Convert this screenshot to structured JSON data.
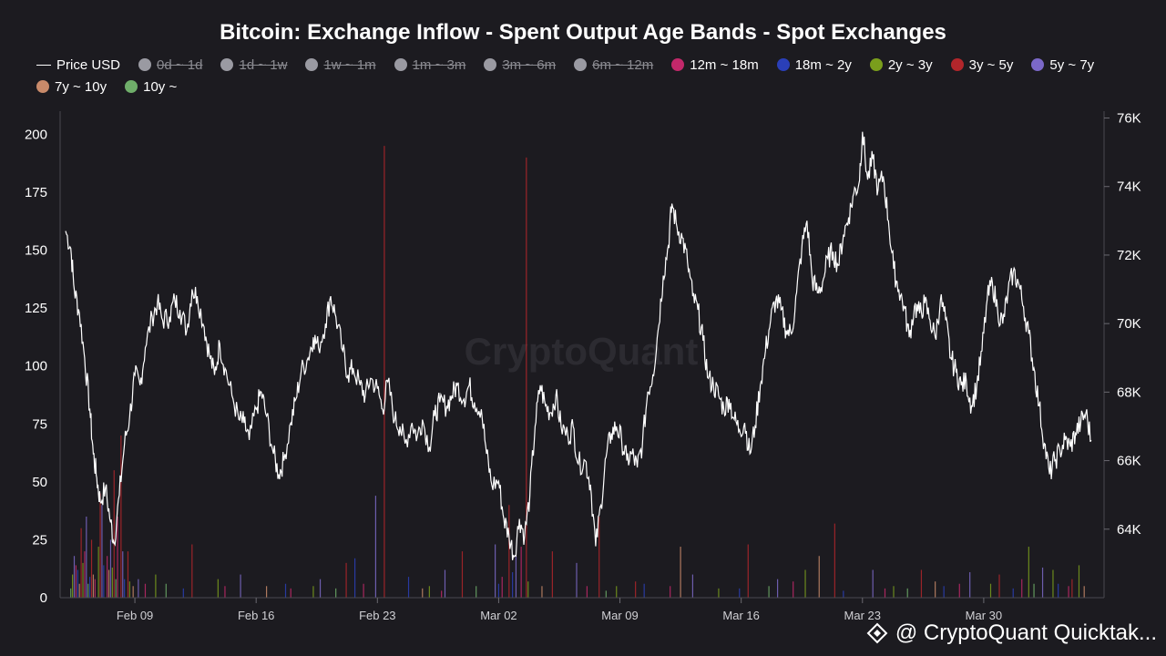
{
  "title": "Bitcoin: Exchange Inflow - Spent Output Age Bands - Spot Exchanges",
  "watermark": "CryptoQuant",
  "footer": {
    "text": "@ CryptoQuant Quicktak..."
  },
  "legend": [
    {
      "label": "Price USD",
      "color": "#ffffff",
      "type": "line",
      "active": true
    },
    {
      "label": "0d ~ 1d",
      "color": "#9a9aa2",
      "type": "dot",
      "active": false
    },
    {
      "label": "1d ~ 1w",
      "color": "#9a9aa2",
      "type": "dot",
      "active": false
    },
    {
      "label": "1w ~ 1m",
      "color": "#9a9aa2",
      "type": "dot",
      "active": false
    },
    {
      "label": "1m ~ 3m",
      "color": "#9a9aa2",
      "type": "dot",
      "active": false
    },
    {
      "label": "3m ~ 6m",
      "color": "#9a9aa2",
      "type": "dot",
      "active": false
    },
    {
      "label": "6m ~ 12m",
      "color": "#9a9aa2",
      "type": "dot",
      "active": false
    },
    {
      "label": "12m ~ 18m",
      "color": "#c2286a",
      "type": "dot",
      "active": true
    },
    {
      "label": "18m ~ 2y",
      "color": "#2a3fb8",
      "type": "dot",
      "active": true
    },
    {
      "label": "2y ~ 3y",
      "color": "#7a9e1c",
      "type": "dot",
      "active": true
    },
    {
      "label": "3y ~ 5y",
      "color": "#b2262b",
      "type": "dot",
      "active": true
    },
    {
      "label": "5y ~ 7y",
      "color": "#7b68c8",
      "type": "dot",
      "active": true
    },
    {
      "label": "7y ~ 10y",
      "color": "#c98a6a",
      "type": "dot",
      "active": true
    },
    {
      "label": "10y ~",
      "color": "#6fae6a",
      "type": "dot",
      "active": true
    }
  ],
  "chart_data": {
    "type": "line",
    "x_ticks": [
      "Feb 09",
      "Feb 16",
      "Feb 23",
      "Mar 02",
      "Mar 09",
      "Mar 16",
      "Mar 23",
      "Mar 30"
    ],
    "y_left": {
      "ticks": [
        0,
        25,
        50,
        75,
        100,
        125,
        150,
        175,
        200
      ],
      "range": [
        0,
        210
      ]
    },
    "y_right": {
      "ticks": [
        "64K",
        "66K",
        "68K",
        "70K",
        "72K",
        "74K",
        "76K"
      ],
      "range": [
        62000,
        76200
      ]
    },
    "x_range_days": [
      0,
      59
    ],
    "price_series": {
      "name": "Price USD",
      "color": "#ffffff",
      "points": [
        [
          0.0,
          72700
        ],
        [
          0.3,
          72200
        ],
        [
          0.5,
          71000
        ],
        [
          0.8,
          70300
        ],
        [
          1.1,
          69000
        ],
        [
          1.4,
          67500
        ],
        [
          1.6,
          66200
        ],
        [
          1.8,
          65500
        ],
        [
          2.0,
          64800
        ],
        [
          2.3,
          65200
        ],
        [
          2.6,
          64200
        ],
        [
          2.8,
          63600
        ],
        [
          3.1,
          65000
        ],
        [
          3.4,
          66500
        ],
        [
          3.7,
          67300
        ],
        [
          4.0,
          68500
        ],
        [
          4.3,
          68200
        ],
        [
          4.6,
          69300
        ],
        [
          5.0,
          70200
        ],
        [
          5.3,
          70600
        ],
        [
          5.6,
          70100
        ],
        [
          6.0,
          70200
        ],
        [
          6.3,
          70700
        ],
        [
          6.6,
          70400
        ],
        [
          7.0,
          69800
        ],
        [
          7.3,
          71000
        ],
        [
          7.6,
          70800
        ],
        [
          8.0,
          69900
        ],
        [
          8.3,
          69100
        ],
        [
          8.6,
          68500
        ],
        [
          8.9,
          69400
        ],
        [
          9.2,
          68700
        ],
        [
          9.6,
          67900
        ],
        [
          10.0,
          67200
        ],
        [
          10.3,
          67100
        ],
        [
          10.6,
          66600
        ],
        [
          11.0,
          67500
        ],
        [
          11.3,
          68000
        ],
        [
          11.6,
          67300
        ],
        [
          12.0,
          66200
        ],
        [
          12.3,
          65600
        ],
        [
          12.6,
          66000
        ],
        [
          13.0,
          67100
        ],
        [
          13.3,
          67800
        ],
        [
          13.6,
          68600
        ],
        [
          14.0,
          69000
        ],
        [
          14.3,
          69600
        ],
        [
          14.6,
          69300
        ],
        [
          15.0,
          70000
        ],
        [
          15.3,
          70800
        ],
        [
          15.6,
          70200
        ],
        [
          16.0,
          69200
        ],
        [
          16.3,
          68500
        ],
        [
          16.6,
          68700
        ],
        [
          17.0,
          68200
        ],
        [
          17.3,
          67900
        ],
        [
          17.6,
          68400
        ],
        [
          18.0,
          68100
        ],
        [
          18.3,
          67500
        ],
        [
          18.6,
          68300
        ],
        [
          19.0,
          67200
        ],
        [
          19.3,
          67000
        ],
        [
          19.6,
          66500
        ],
        [
          20.0,
          67100
        ],
        [
          20.3,
          66700
        ],
        [
          20.6,
          67200
        ],
        [
          21.0,
          66400
        ],
        [
          21.3,
          67300
        ],
        [
          21.6,
          67700
        ],
        [
          22.0,
          67600
        ],
        [
          22.3,
          67900
        ],
        [
          22.6,
          68200
        ],
        [
          23.0,
          67800
        ],
        [
          23.3,
          68200
        ],
        [
          23.6,
          67700
        ],
        [
          24.0,
          67500
        ],
        [
          24.3,
          66200
        ],
        [
          24.6,
          65300
        ],
        [
          25.0,
          65400
        ],
        [
          25.3,
          64300
        ],
        [
          25.6,
          63800
        ],
        [
          25.9,
          63200
        ],
        [
          26.2,
          64300
        ],
        [
          26.5,
          63800
        ],
        [
          26.8,
          65000
        ],
        [
          27.1,
          67000
        ],
        [
          27.4,
          68200
        ],
        [
          27.7,
          67600
        ],
        [
          28.0,
          67400
        ],
        [
          28.3,
          67900
        ],
        [
          28.6,
          67000
        ],
        [
          29.0,
          66700
        ],
        [
          29.3,
          67000
        ],
        [
          29.6,
          65900
        ],
        [
          30.0,
          66000
        ],
        [
          30.3,
          65300
        ],
        [
          30.6,
          63500
        ],
        [
          30.9,
          64700
        ],
        [
          31.2,
          66100
        ],
        [
          31.5,
          66800
        ],
        [
          31.8,
          67000
        ],
        [
          32.1,
          66600
        ],
        [
          32.4,
          66000
        ],
        [
          32.7,
          66200
        ],
        [
          33.0,
          65800
        ],
        [
          33.3,
          66500
        ],
        [
          33.6,
          68000
        ],
        [
          33.9,
          68500
        ],
        [
          34.2,
          69800
        ],
        [
          34.5,
          71400
        ],
        [
          34.8,
          72300
        ],
        [
          35.0,
          73500
        ],
        [
          35.3,
          72800
        ],
        [
          35.6,
          72500
        ],
        [
          35.9,
          71800
        ],
        [
          36.2,
          70800
        ],
        [
          36.5,
          70400
        ],
        [
          36.8,
          69500
        ],
        [
          37.1,
          68400
        ],
        [
          37.4,
          68200
        ],
        [
          37.7,
          67900
        ],
        [
          38.0,
          67500
        ],
        [
          38.3,
          67800
        ],
        [
          38.6,
          67200
        ],
        [
          38.9,
          66900
        ],
        [
          39.2,
          67100
        ],
        [
          39.5,
          66200
        ],
        [
          39.8,
          67000
        ],
        [
          40.1,
          68200
        ],
        [
          40.4,
          69200
        ],
        [
          40.7,
          70100
        ],
        [
          41.0,
          70700
        ],
        [
          41.3,
          70400
        ],
        [
          41.6,
          69800
        ],
        [
          41.9,
          69700
        ],
        [
          42.2,
          70900
        ],
        [
          42.5,
          72200
        ],
        [
          42.8,
          73000
        ],
        [
          43.1,
          71300
        ],
        [
          43.4,
          70900
        ],
        [
          43.7,
          71200
        ],
        [
          44.0,
          71900
        ],
        [
          44.3,
          72100
        ],
        [
          44.6,
          71700
        ],
        [
          44.9,
          72600
        ],
        [
          45.2,
          73100
        ],
        [
          45.5,
          73800
        ],
        [
          45.8,
          74100
        ],
        [
          46.0,
          75600
        ],
        [
          46.3,
          74200
        ],
        [
          46.6,
          74800
        ],
        [
          46.9,
          73900
        ],
        [
          47.2,
          74300
        ],
        [
          47.5,
          73000
        ],
        [
          47.8,
          71600
        ],
        [
          48.1,
          71000
        ],
        [
          48.4,
          70500
        ],
        [
          48.7,
          69600
        ],
        [
          49.0,
          70500
        ],
        [
          49.3,
          70300
        ],
        [
          49.6,
          70600
        ],
        [
          49.9,
          70100
        ],
        [
          50.2,
          69600
        ],
        [
          50.5,
          70700
        ],
        [
          50.8,
          70100
        ],
        [
          51.1,
          69000
        ],
        [
          51.4,
          68600
        ],
        [
          51.7,
          68200
        ],
        [
          52.0,
          68300
        ],
        [
          52.3,
          67600
        ],
        [
          52.6,
          68200
        ],
        [
          52.9,
          69200
        ],
        [
          53.2,
          70700
        ],
        [
          53.5,
          71200
        ],
        [
          53.8,
          70400
        ],
        [
          54.1,
          70000
        ],
        [
          54.4,
          70900
        ],
        [
          54.7,
          71500
        ],
        [
          55.0,
          71200
        ],
        [
          55.3,
          70500
        ],
        [
          55.6,
          69700
        ],
        [
          55.9,
          68700
        ],
        [
          56.2,
          67600
        ],
        [
          56.5,
          66500
        ],
        [
          56.8,
          65600
        ],
        [
          57.1,
          66000
        ],
        [
          57.4,
          66300
        ],
        [
          57.7,
          66600
        ],
        [
          58.0,
          66400
        ],
        [
          58.3,
          66800
        ],
        [
          58.6,
          67100
        ],
        [
          58.9,
          67400
        ],
        [
          59.2,
          66600
        ]
      ]
    },
    "inflow_series": [
      {
        "name": "12m ~ 18m",
        "color": "#c2286a",
        "bars": [
          [
            0.6,
            14
          ],
          [
            1.1,
            20
          ],
          [
            1.7,
            8
          ],
          [
            2.4,
            18
          ],
          [
            3.0,
            35
          ],
          [
            4.6,
            6
          ],
          [
            9.2,
            5
          ],
          [
            13.0,
            4
          ],
          [
            17.2,
            6
          ],
          [
            21.7,
            3
          ],
          [
            25.2,
            9
          ],
          [
            26.3,
            22
          ],
          [
            30.1,
            5
          ],
          [
            34.9,
            5
          ],
          [
            42.0,
            7
          ],
          [
            47.3,
            4
          ],
          [
            51.6,
            6
          ],
          [
            55.2,
            8
          ],
          [
            57.9,
            5
          ]
        ]
      },
      {
        "name": "18m ~ 2y",
        "color": "#2a3fb8",
        "bars": [
          [
            0.7,
            12
          ],
          [
            1.4,
            9
          ],
          [
            2.2,
            14
          ],
          [
            3.4,
            8
          ],
          [
            6.8,
            4
          ],
          [
            12.7,
            6
          ],
          [
            16.7,
            17
          ],
          [
            19.8,
            9
          ],
          [
            25.0,
            6
          ],
          [
            25.8,
            11
          ],
          [
            33.4,
            6
          ],
          [
            38.9,
            4
          ],
          [
            44.9,
            3
          ],
          [
            50.7,
            5
          ],
          [
            54.7,
            4
          ],
          [
            57.3,
            6
          ]
        ]
      },
      {
        "name": "2y ~ 3y",
        "color": "#7a9e1c",
        "bars": [
          [
            0.4,
            10
          ],
          [
            1.0,
            15
          ],
          [
            1.9,
            22
          ],
          [
            2.7,
            13
          ],
          [
            3.7,
            7
          ],
          [
            5.2,
            10
          ],
          [
            8.8,
            8
          ],
          [
            14.3,
            5
          ],
          [
            21.0,
            5
          ],
          [
            26.7,
            7
          ],
          [
            31.8,
            5
          ],
          [
            37.7,
            4
          ],
          [
            42.7,
            12
          ],
          [
            47.8,
            5
          ],
          [
            53.4,
            6
          ],
          [
            55.6,
            22
          ],
          [
            57.0,
            12
          ],
          [
            58.5,
            14
          ]
        ]
      },
      {
        "name": "3y ~ 5y",
        "color": "#b2262b",
        "bars": [
          [
            0.9,
            30
          ],
          [
            1.5,
            25
          ],
          [
            2.0,
            45
          ],
          [
            2.8,
            55
          ],
          [
            3.2,
            70
          ],
          [
            3.6,
            20
          ],
          [
            7.3,
            23
          ],
          [
            16.2,
            15
          ],
          [
            18.4,
            195
          ],
          [
            22.9,
            20
          ],
          [
            25.6,
            40
          ],
          [
            26.6,
            190
          ],
          [
            28.1,
            20
          ],
          [
            30.8,
            35
          ],
          [
            32.9,
            7
          ],
          [
            39.4,
            23
          ],
          [
            44.4,
            32
          ],
          [
            49.4,
            12
          ],
          [
            53.9,
            10
          ],
          [
            58.1,
            8
          ]
        ]
      },
      {
        "name": "5y ~ 7y",
        "color": "#7b68c8",
        "bars": [
          [
            0.5,
            18
          ],
          [
            1.2,
            35
          ],
          [
            2.1,
            40
          ],
          [
            2.6,
            25
          ],
          [
            3.3,
            20
          ],
          [
            4.2,
            8
          ],
          [
            10.1,
            10
          ],
          [
            14.7,
            8
          ],
          [
            17.9,
            44
          ],
          [
            21.9,
            12
          ],
          [
            24.8,
            23
          ],
          [
            26.0,
            18
          ],
          [
            29.5,
            15
          ],
          [
            36.2,
            10
          ],
          [
            41.1,
            8
          ],
          [
            46.6,
            12
          ],
          [
            52.2,
            11
          ],
          [
            56.4,
            13
          ]
        ]
      },
      {
        "name": "7y ~ 10y",
        "color": "#c98a6a",
        "bars": [
          [
            0.8,
            6
          ],
          [
            1.6,
            10
          ],
          [
            2.5,
            12
          ],
          [
            3.9,
            5
          ],
          [
            11.6,
            5
          ],
          [
            20.6,
            4
          ],
          [
            27.5,
            5
          ],
          [
            35.5,
            22
          ],
          [
            43.5,
            18
          ],
          [
            50.2,
            7
          ],
          [
            58.8,
            5
          ]
        ]
      },
      {
        "name": "10y ~",
        "color": "#6fae6a",
        "bars": [
          [
            0.3,
            4
          ],
          [
            1.3,
            6
          ],
          [
            2.9,
            8
          ],
          [
            5.8,
            6
          ],
          [
            15.6,
            4
          ],
          [
            23.7,
            5
          ],
          [
            31.2,
            3
          ],
          [
            40.6,
            5
          ],
          [
            48.6,
            4
          ],
          [
            55.9,
            6
          ]
        ]
      }
    ]
  }
}
